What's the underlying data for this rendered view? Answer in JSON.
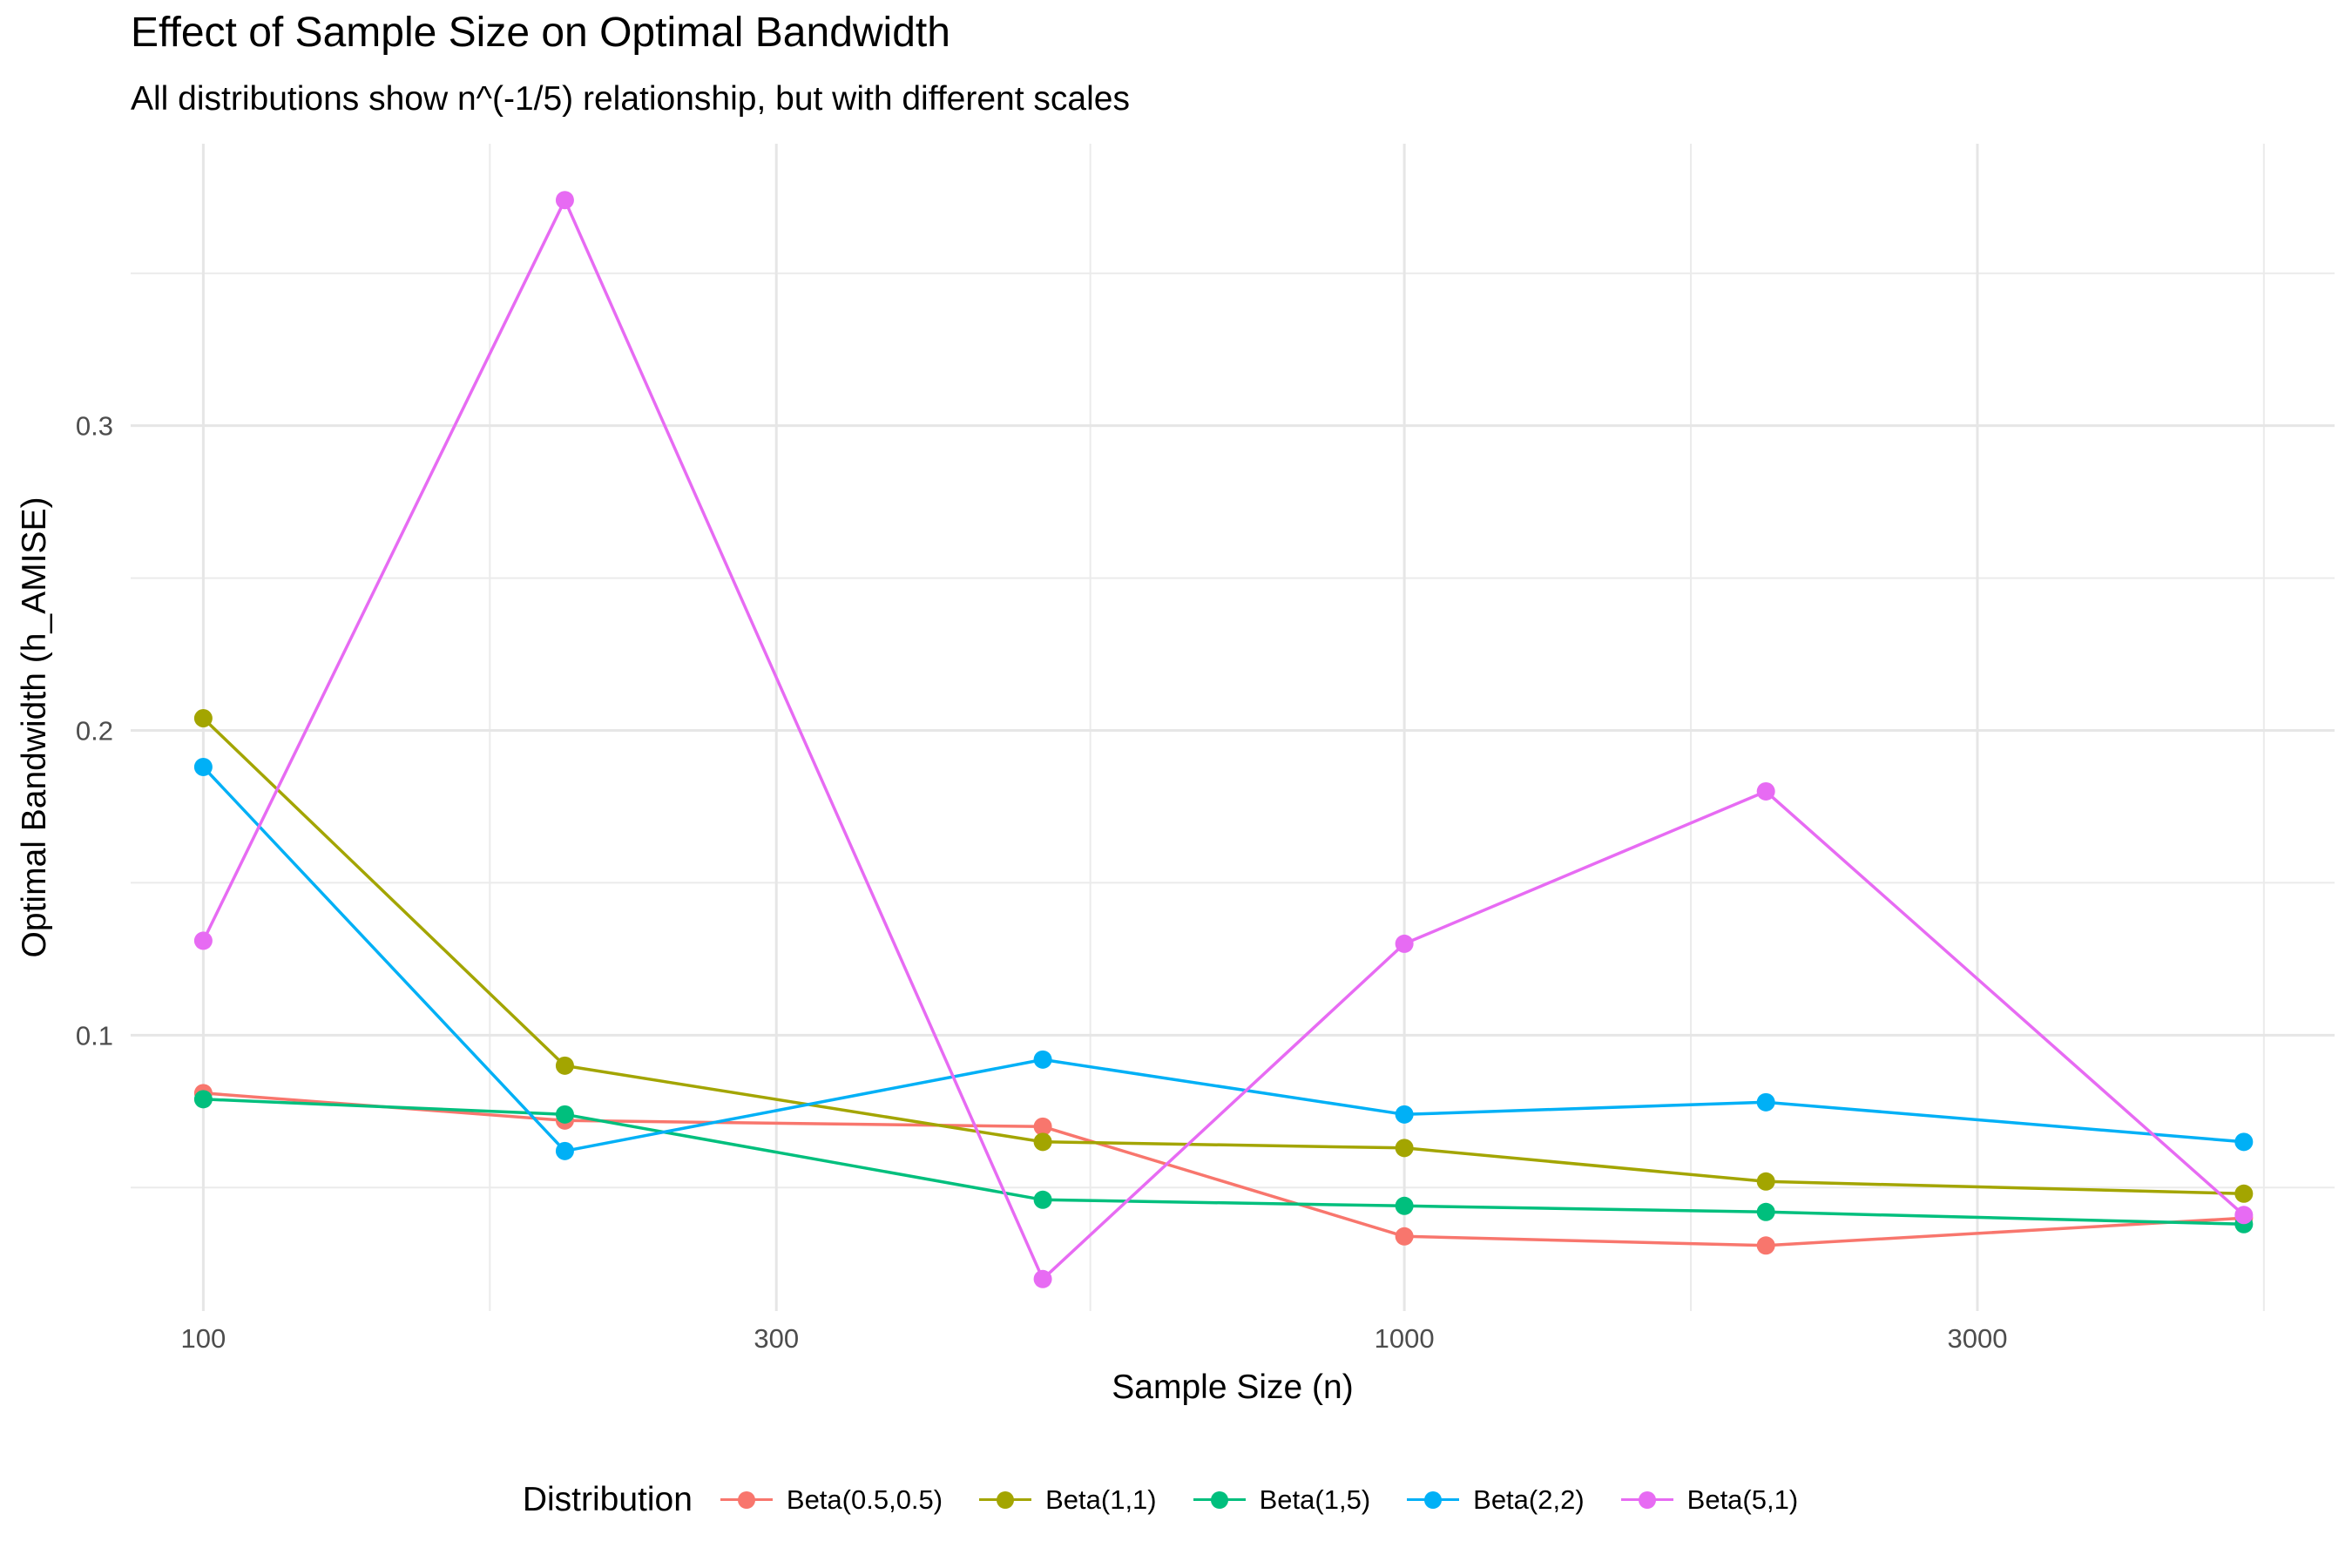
{
  "chart_data": {
    "type": "line",
    "title": "Effect of Sample Size on Optimal Bandwidth",
    "subtitle": "All distributions show n^(-1/5) relationship, but with different scales",
    "xlabel": "Sample Size (n)",
    "ylabel": "Optimal Bandwidth (h_AMISE)",
    "x_scale": "log10",
    "xlim": [
      87,
      5950
    ],
    "ylim": [
      0.0095,
      0.3925
    ],
    "x_ticks": [
      100,
      300,
      1000,
      3000
    ],
    "x_tick_labels": [
      "100",
      "300",
      "1000",
      "3000"
    ],
    "y_ticks": [
      0.1,
      0.2,
      0.3
    ],
    "y_tick_labels": [
      "0.1",
      "0.2",
      "0.3"
    ],
    "grid": true,
    "legend_title": "Distribution",
    "legend_position": "bottom",
    "x": [
      100,
      200,
      500,
      1000,
      2000,
      5000
    ],
    "series": [
      {
        "name": "Beta(0.5,0.5)",
        "color": "#F8766D",
        "values": [
          0.081,
          0.072,
          0.07,
          0.034,
          0.031,
          0.04
        ]
      },
      {
        "name": "Beta(1,1)",
        "color": "#A3A500",
        "values": [
          0.204,
          0.09,
          0.065,
          0.063,
          0.052,
          0.048
        ]
      },
      {
        "name": "Beta(1,5)",
        "color": "#00BF7D",
        "values": [
          0.079,
          0.074,
          0.046,
          0.044,
          0.042,
          0.038
        ]
      },
      {
        "name": "Beta(2,2)",
        "color": "#00B0F6",
        "values": [
          0.188,
          0.062,
          0.092,
          0.074,
          0.078,
          0.065
        ]
      },
      {
        "name": "Beta(5,1)",
        "color": "#E76BF3",
        "values": [
          0.131,
          0.374,
          0.02,
          0.13,
          0.18,
          0.041
        ]
      }
    ]
  }
}
